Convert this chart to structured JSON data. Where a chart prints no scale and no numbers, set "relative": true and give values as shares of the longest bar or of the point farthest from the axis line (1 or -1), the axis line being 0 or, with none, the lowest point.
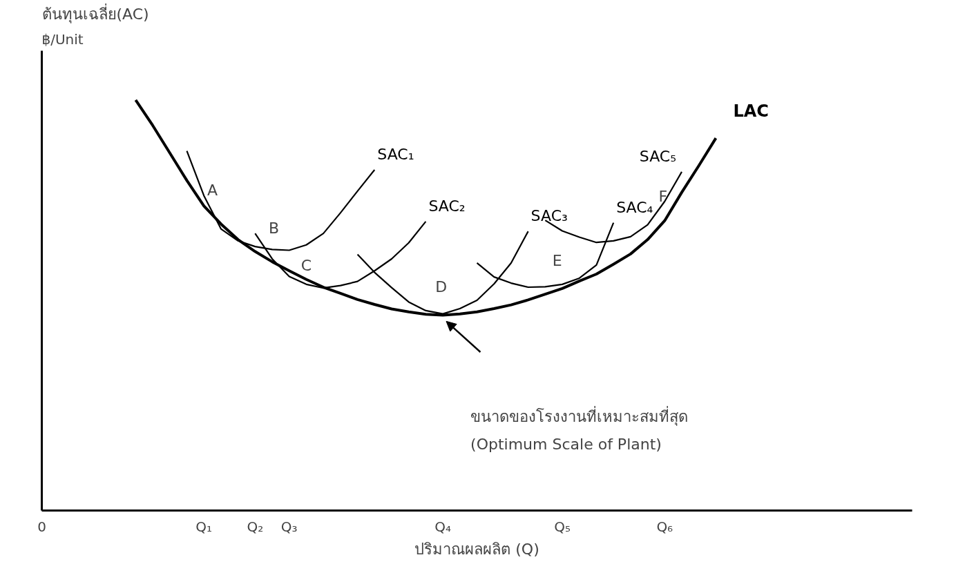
{
  "chart_data": {
    "type": "line",
    "title": "ต้นทุนเฉลี่ย(AC)",
    "ylabel": "฿/Unit",
    "xlabel": "ปริมาณผลผลิต (Q)",
    "relative": true,
    "grid": false,
    "marker": "none",
    "line_style": "solid",
    "tick_labels": "x",
    "categories": [
      null,
      null,
      null,
      null,
      null,
      null,
      null,
      null,
      null,
      "Q₁",
      null,
      null,
      "Q₂",
      null,
      "Q₃",
      null,
      null,
      null,
      null,
      null,
      null,
      null,
      null,
      "Q₄",
      null,
      null,
      null,
      null,
      null,
      null,
      "Q₅",
      null,
      null,
      null,
      null,
      null,
      "Q₆",
      null,
      null,
      null,
      null,
      null,
      null,
      null,
      null,
      null,
      null,
      null,
      null,
      null
    ],
    "series": [
      {
        "name": "LAC",
        "color": "#000000",
        "values": [
          null,
          null,
          null,
          null,
          null,
          1.0,
          0.938,
          0.871,
          0.804,
          0.742,
          0.698,
          0.66,
          0.631,
          0.606,
          0.584,
          0.563,
          0.544,
          0.529,
          0.514,
          0.502,
          0.491,
          0.484,
          0.478,
          0.476,
          0.479,
          0.484,
          0.492,
          0.501,
          0.513,
          0.527,
          0.541,
          0.559,
          0.576,
          0.6,
          0.625,
          0.66,
          0.706,
          0.775,
          0.84,
          0.907,
          null,
          null,
          null,
          null,
          null,
          null,
          null,
          null,
          null,
          null
        ]
      },
      {
        "name": "SAC₁",
        "color": "#000000",
        "values": [
          null,
          null,
          null,
          null,
          null,
          null,
          null,
          null,
          0.876,
          0.767,
          0.686,
          0.657,
          0.643,
          0.636,
          0.634,
          0.647,
          0.675,
          0.725,
          0.778,
          0.83,
          null,
          null,
          null,
          null,
          null,
          null,
          null,
          null,
          null,
          null,
          null,
          null,
          null,
          null,
          null,
          null,
          null,
          null,
          null,
          null,
          null,
          null,
          null,
          null,
          null,
          null,
          null,
          null,
          null,
          null
        ]
      },
      {
        "name": "SAC₂",
        "color": "#000000",
        "values": [
          null,
          null,
          null,
          null,
          null,
          null,
          null,
          null,
          null,
          null,
          null,
          null,
          0.675,
          0.613,
          0.57,
          0.551,
          0.542,
          0.548,
          0.558,
          0.584,
          0.613,
          0.652,
          0.704,
          null,
          null,
          null,
          null,
          null,
          null,
          null,
          null,
          null,
          null,
          null,
          null,
          null,
          null,
          null,
          null,
          null,
          null,
          null,
          null,
          null,
          null,
          null,
          null,
          null,
          null,
          null
        ]
      },
      {
        "name": "SAC₃",
        "color": "#000000",
        "values": [
          null,
          null,
          null,
          null,
          null,
          null,
          null,
          null,
          null,
          null,
          null,
          null,
          null,
          null,
          null,
          null,
          null,
          null,
          0.624,
          0.58,
          0.543,
          0.508,
          0.487,
          0.479,
          0.492,
          0.512,
          0.552,
          0.603,
          0.68,
          null,
          null,
          null,
          null,
          null,
          null,
          null,
          null,
          null,
          null,
          null,
          null,
          null,
          null,
          null,
          null,
          null,
          null,
          null,
          null,
          null
        ]
      },
      {
        "name": "SAC₄",
        "color": "#000000",
        "values": [
          null,
          null,
          null,
          null,
          null,
          null,
          null,
          null,
          null,
          null,
          null,
          null,
          null,
          null,
          null,
          null,
          null,
          null,
          null,
          null,
          null,
          null,
          null,
          null,
          null,
          0.603,
          0.569,
          0.554,
          0.544,
          0.545,
          0.551,
          0.566,
          0.598,
          0.701,
          null,
          null,
          null,
          null,
          null,
          null,
          null,
          null,
          null,
          null,
          null,
          null,
          null,
          null,
          null,
          null
        ]
      },
      {
        "name": "SAC₅",
        "color": "#000000",
        "values": [
          null,
          null,
          null,
          null,
          null,
          null,
          null,
          null,
          null,
          null,
          null,
          null,
          null,
          null,
          null,
          null,
          null,
          null,
          null,
          null,
          null,
          null,
          null,
          null,
          null,
          null,
          null,
          null,
          null,
          0.707,
          0.681,
          0.666,
          0.653,
          0.657,
          0.667,
          0.696,
          0.753,
          0.825,
          null,
          null,
          null,
          null,
          null,
          null,
          null,
          null,
          null,
          null,
          null,
          null
        ]
      }
    ],
    "annotations": [
      "0",
      "A",
      "B",
      "C",
      "D",
      "E",
      "F",
      "ขนาดของโรงงานที่เหมาะสมที่สุด\n(Optimum Scale of Plant)"
    ]
  }
}
